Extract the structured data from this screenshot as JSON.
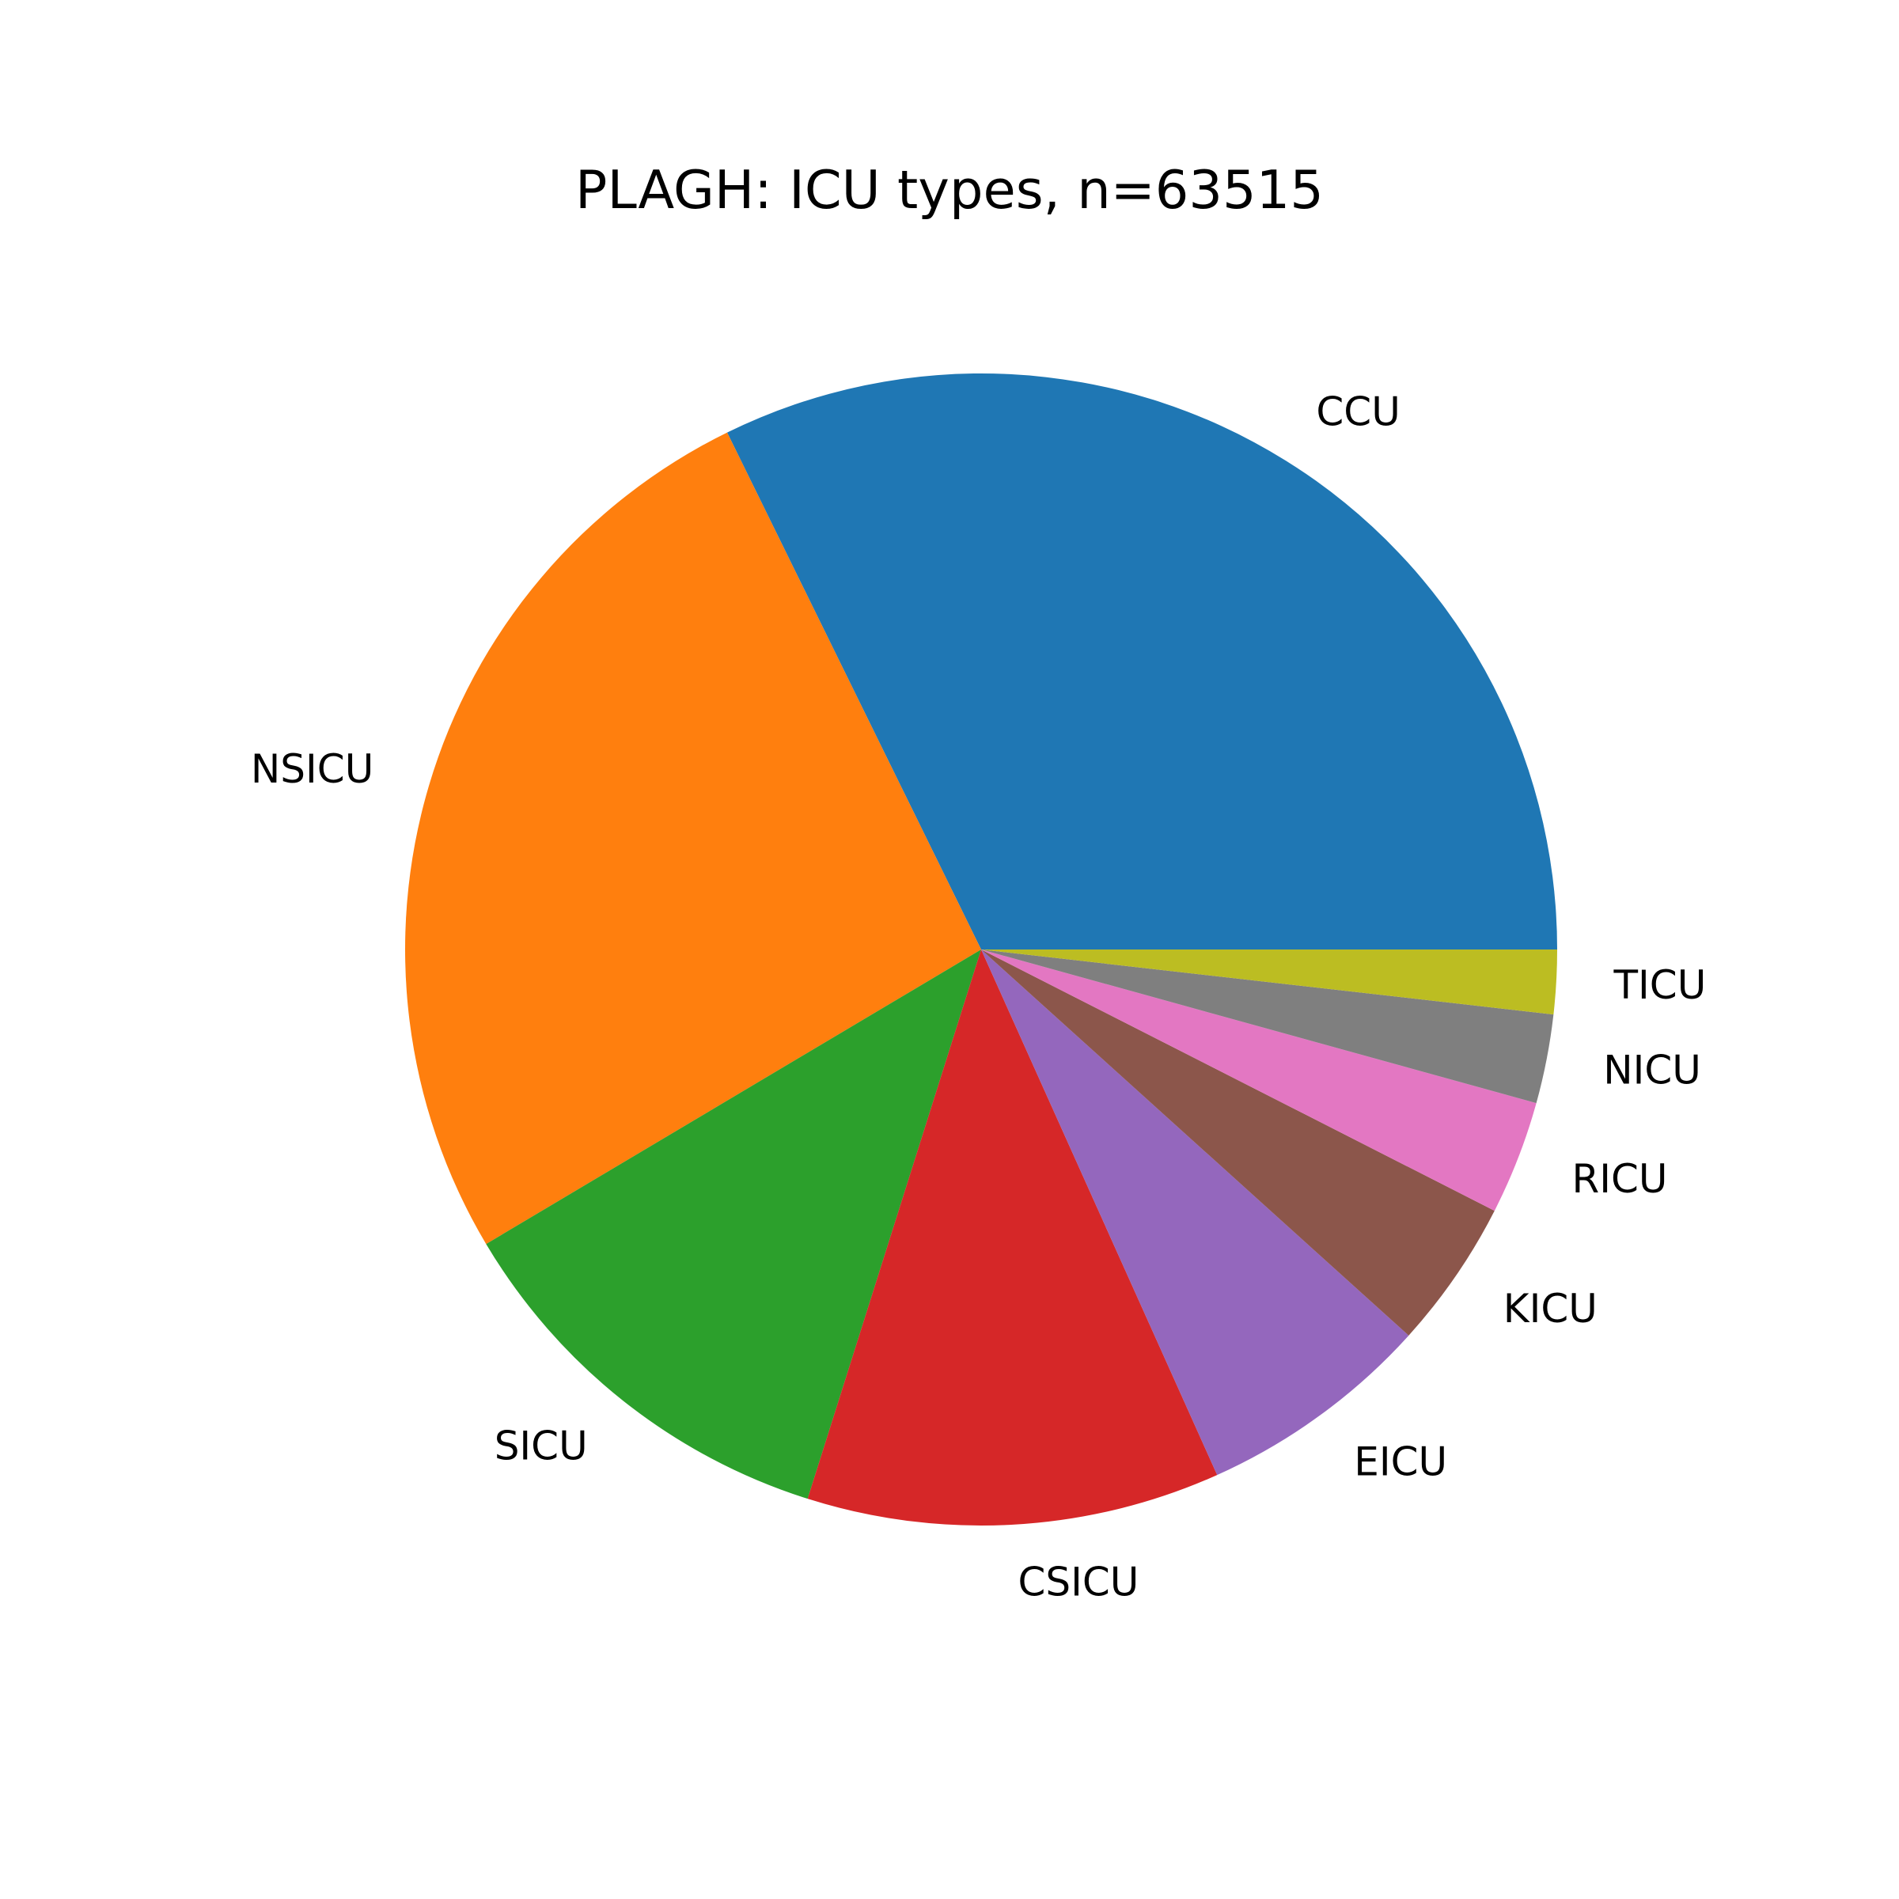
{
  "chart_data": {
    "type": "pie",
    "title": "PLAGH: ICU types, n=63515",
    "start_angle_deg": 0,
    "direction": "counterclockwise",
    "slices": [
      {
        "label": "CCU",
        "value": 32.3,
        "color": "#1f77b4"
      },
      {
        "label": "NSICU",
        "value": 26.3,
        "color": "#ff7f0e"
      },
      {
        "label": "SICU",
        "value": 11.6,
        "color": "#2ca02c"
      },
      {
        "label": "CSICU",
        "value": 11.6,
        "color": "#d62728"
      },
      {
        "label": "EICU",
        "value": 6.6,
        "color": "#9467bd"
      },
      {
        "label": "KICU",
        "value": 4.2,
        "color": "#8c564b"
      },
      {
        "label": "RICU",
        "value": 3.2,
        "color": "#e377c2"
      },
      {
        "label": "NICU",
        "value": 2.5,
        "color": "#7f7f7f"
      },
      {
        "label": "TICU",
        "value": 1.8,
        "color": "#bcbd22"
      }
    ]
  }
}
